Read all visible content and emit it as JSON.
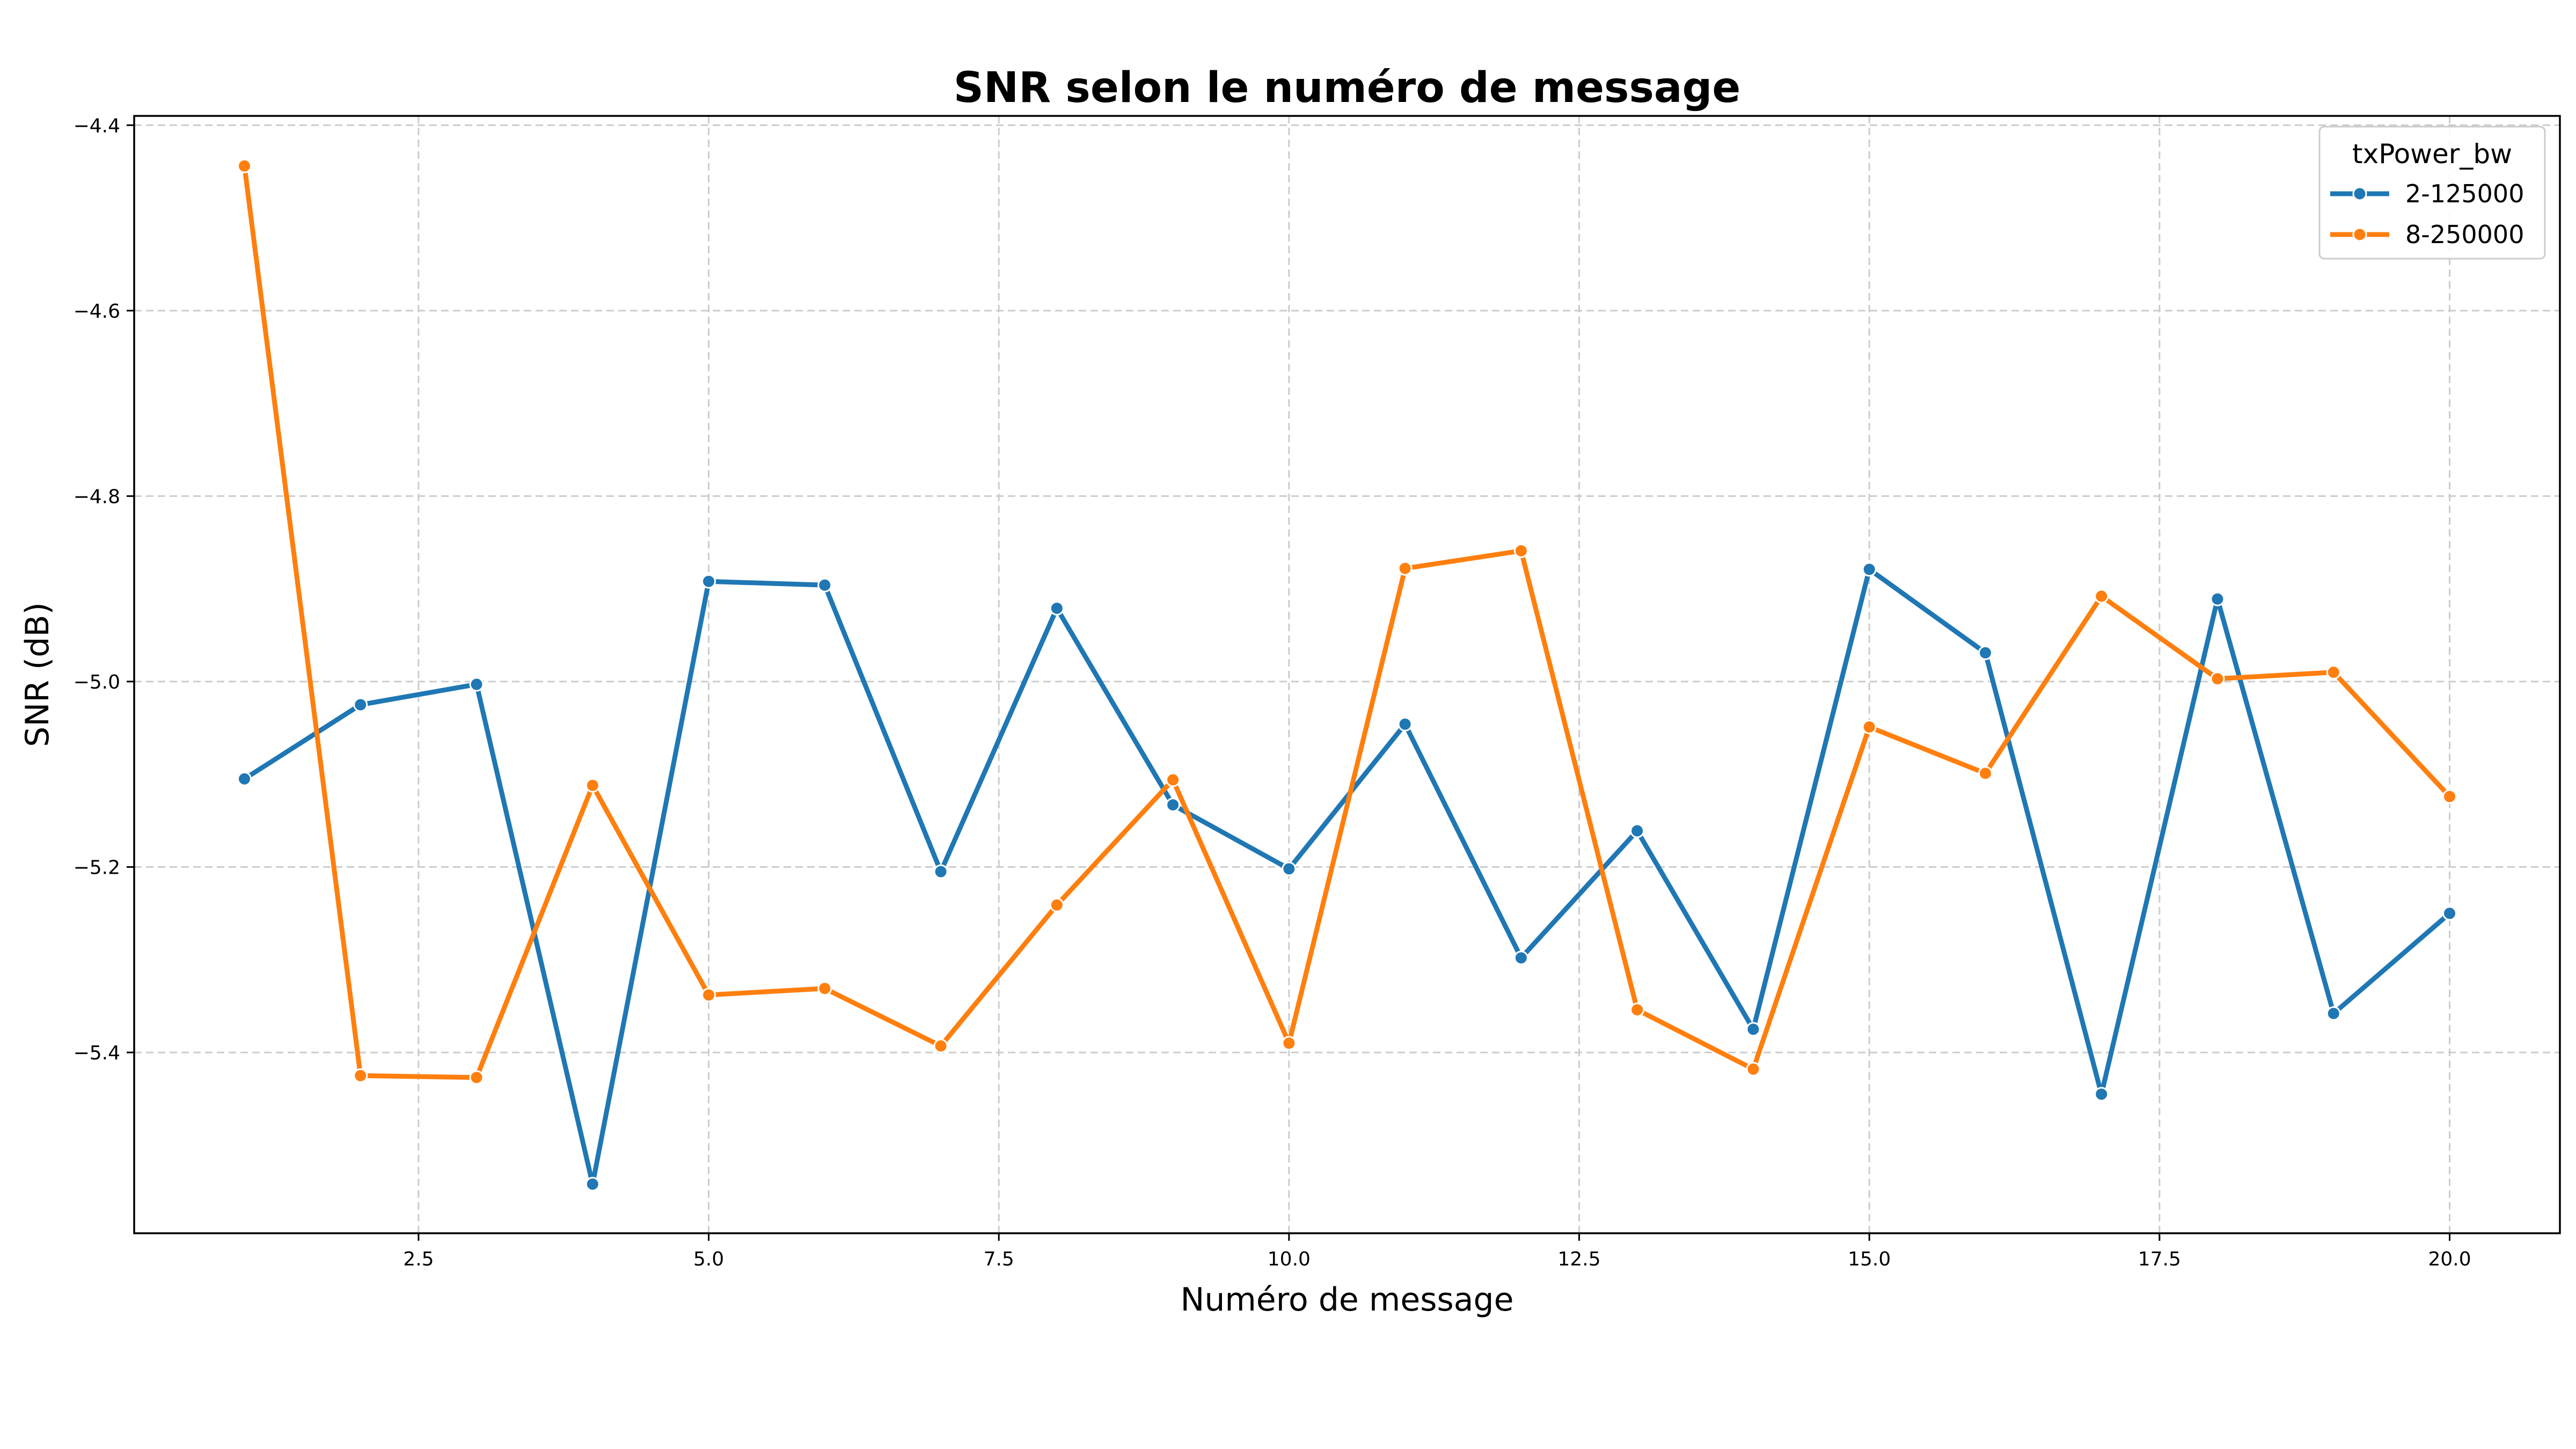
{
  "chart_data": {
    "type": "line",
    "title": "SNR selon le numéro de message",
    "xlabel": "Numéro de message",
    "ylabel": "SNR (dB)",
    "xlim": [
      0.05,
      20.95
    ],
    "ylim": [
      -5.595,
      -4.39
    ],
    "xticks": [
      2.5,
      5.0,
      7.5,
      10.0,
      12.5,
      15.0,
      17.5,
      20.0
    ],
    "xtick_labels": [
      "2.5",
      "5.0",
      "7.5",
      "10.0",
      "12.5",
      "15.0",
      "17.5",
      "20.0"
    ],
    "yticks": [
      -4.4,
      -4.6,
      -4.8,
      -5.0,
      -5.2,
      -5.4
    ],
    "ytick_labels": [
      "−4.4",
      "−4.6",
      "−4.8",
      "−5.0",
      "−5.2",
      "−5.4"
    ],
    "grid": true,
    "legend": {
      "title": "txPower_bw",
      "placement": "top-right"
    },
    "x": [
      1,
      2,
      3,
      4,
      5,
      6,
      7,
      8,
      9,
      10,
      11,
      12,
      13,
      14,
      15,
      16,
      17,
      18,
      19,
      20
    ],
    "series": [
      {
        "name": "2-125000",
        "color": "#1f77b4",
        "values": [
          -5.105,
          -5.025,
          -5.003,
          -5.542,
          -4.892,
          -4.896,
          -5.205,
          -4.921,
          -5.133,
          -5.202,
          -5.046,
          -5.298,
          -5.161,
          -5.375,
          -4.879,
          -4.969,
          -5.445,
          -4.911,
          -5.358,
          -5.25
        ]
      },
      {
        "name": "8-250000",
        "color": "#ff7f0e",
        "values": [
          -4.444,
          -5.425,
          -5.427,
          -5.112,
          -5.338,
          -5.331,
          -5.393,
          -5.241,
          -5.106,
          -5.39,
          -4.878,
          -4.859,
          -5.354,
          -5.418,
          -5.049,
          -5.099,
          -4.908,
          -4.997,
          -4.99,
          -5.124
        ]
      }
    ]
  }
}
